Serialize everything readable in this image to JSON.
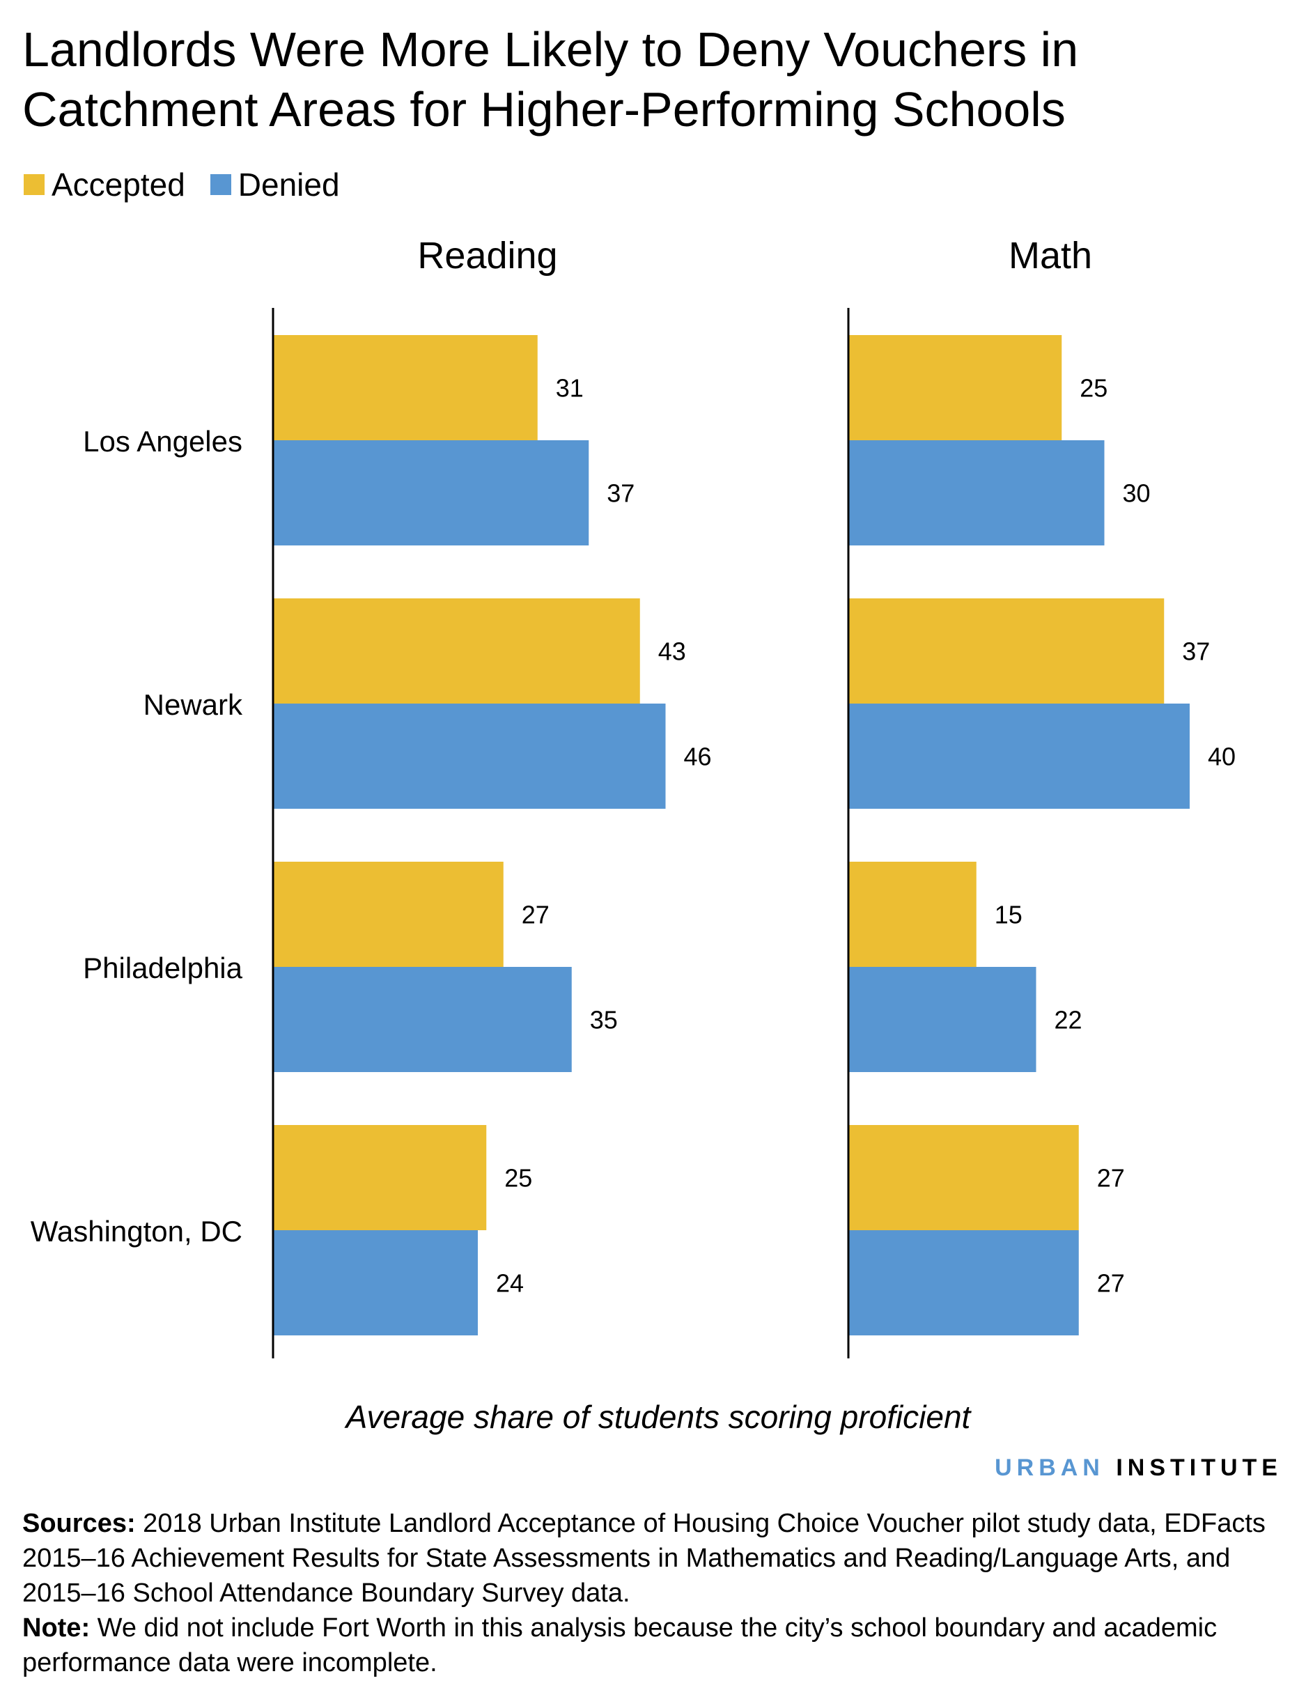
{
  "chart_data": [
    {
      "type": "bar",
      "orientation": "horizontal",
      "title": "Reading",
      "categories": [
        "Los Angeles",
        "Newark",
        "Philadelphia",
        "Washington, DC"
      ],
      "series": [
        {
          "name": "Accepted",
          "values": [
            31,
            43,
            27,
            25
          ],
          "color": "#ecbe33"
        },
        {
          "name": "Denied",
          "values": [
            37,
            46,
            35,
            24
          ],
          "color": "#5896d2"
        }
      ],
      "xlim": [
        0,
        50
      ],
      "grid": false,
      "data_labels": true
    },
    {
      "type": "bar",
      "orientation": "horizontal",
      "title": "Math",
      "categories": [
        "Los Angeles",
        "Newark",
        "Philadelphia",
        "Washington, DC"
      ],
      "series": [
        {
          "name": "Accepted",
          "values": [
            25,
            37,
            15,
            27
          ],
          "color": "#ecbe33"
        },
        {
          "name": "Denied",
          "values": [
            30,
            40,
            22,
            27
          ],
          "color": "#5896d2"
        }
      ],
      "xlim": [
        0,
        50
      ],
      "grid": false,
      "data_labels": true
    }
  ],
  "title": "Landlords Were More Likely to Deny Vouchers in Catchment Areas for Higher-Performing Schools",
  "legend": {
    "placement": "top-left",
    "items": [
      {
        "label": "Accepted",
        "color": "#ecbe33"
      },
      {
        "label": "Denied",
        "color": "#5896d2"
      }
    ]
  },
  "xlabel": "Average share of students scoring proficient",
  "logo": {
    "part1": "URBAN",
    "part2": "INSTITUTE",
    "color1": "#5896d2",
    "color2": "#000000"
  },
  "notes": {
    "sources_label": "Sources:",
    "sources_text": " 2018 Urban Institute Landlord Acceptance of Housing Choice Voucher pilot study data, EDFacts 2015–16 Achievement Results for State Assessments in Mathematics and Reading/Language Arts, and 2015–16 School Attendance Boundary Survey data.",
    "note_label": "Note:",
    "note_text": " We did not include Fort Worth in this analysis because the city’s school boundary and academic performance data were incomplete."
  }
}
